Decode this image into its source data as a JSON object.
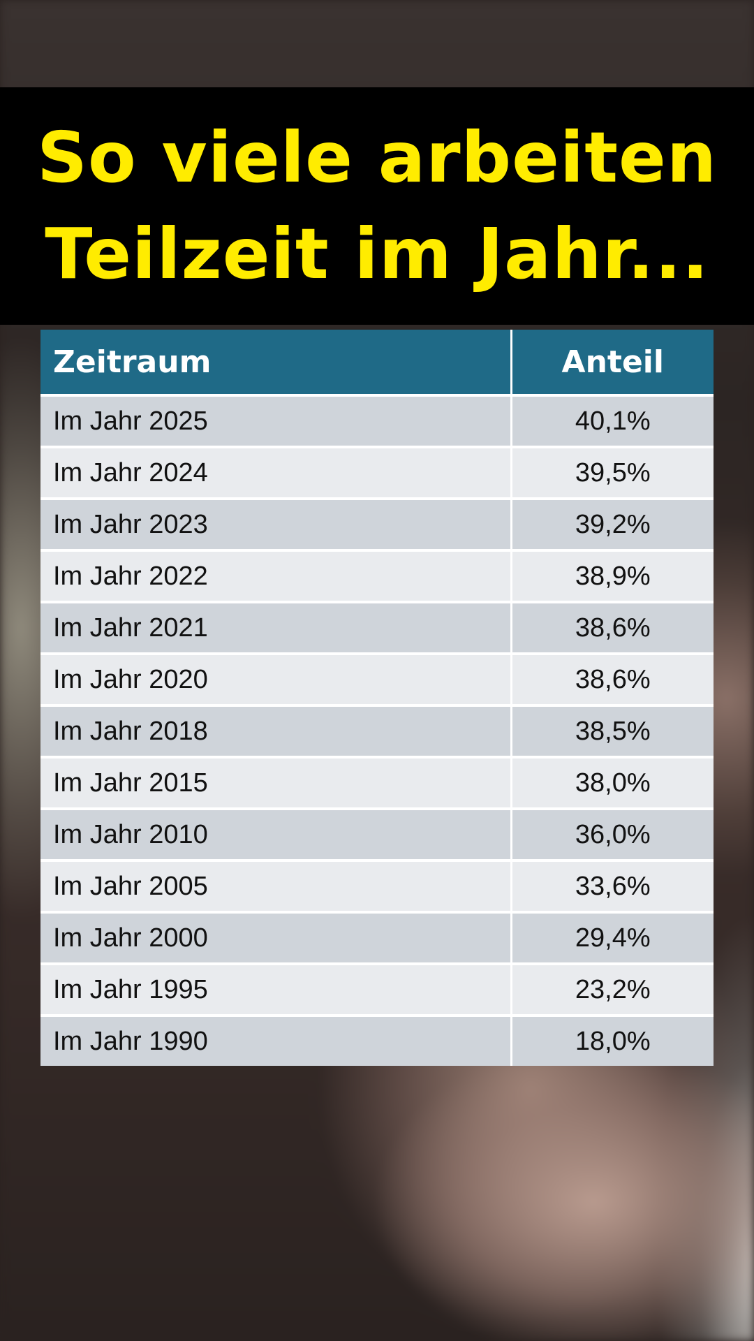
{
  "title": {
    "line1": "So viele arbeiten",
    "line2": "Teilzeit im Jahr..."
  },
  "colors": {
    "title_text": "#ffec00",
    "title_band": "#000000",
    "header_bg": "#1f6a87",
    "row_odd": "#cfd4da",
    "row_even": "#e9ebee"
  },
  "chart_data": {
    "type": "table",
    "columns": [
      "Zeitraum",
      "Anteil"
    ],
    "rows": [
      [
        "Im Jahr 2025",
        "40,1%"
      ],
      [
        "Im Jahr 2024",
        "39,5%"
      ],
      [
        "Im Jahr 2023",
        "39,2%"
      ],
      [
        "Im Jahr 2022",
        "38,9%"
      ],
      [
        "Im Jahr 2021",
        "38,6%"
      ],
      [
        "Im Jahr 2020",
        "38,6%"
      ],
      [
        "Im Jahr 2018",
        "38,5%"
      ],
      [
        "Im Jahr 2015",
        "38,0%"
      ],
      [
        "Im Jahr 2010",
        "36,0%"
      ],
      [
        "Im Jahr 2005",
        "33,6%"
      ],
      [
        "Im Jahr 2000",
        "29,4%"
      ],
      [
        "Im Jahr 1995",
        "23,2%"
      ],
      [
        "Im Jahr 1990",
        "18,0%"
      ]
    ]
  }
}
